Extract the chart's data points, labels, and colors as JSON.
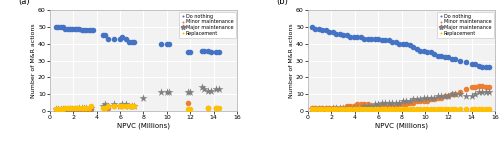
{
  "panel_a": {
    "do_nothing": {
      "x": [
        0.5,
        0.7,
        0.9,
        1.1,
        1.3,
        1.5,
        1.7,
        1.9,
        2.1,
        2.3,
        2.5,
        2.7,
        2.9,
        3.1,
        3.3,
        3.5,
        3.7,
        4.5,
        4.7,
        5.0,
        5.5,
        6.0,
        6.2,
        6.5,
        6.8,
        7.0,
        7.2,
        9.5,
        10.0,
        10.2,
        11.8,
        12.0,
        13.0,
        13.2,
        13.5,
        13.8,
        14.2,
        14.5
      ],
      "y": [
        50,
        50,
        50,
        50,
        49,
        49,
        49,
        49,
        49,
        49,
        49,
        48,
        48,
        48,
        48,
        48,
        48,
        45,
        45,
        43,
        43,
        43,
        44,
        43,
        41,
        41,
        41,
        40,
        40,
        40,
        35,
        35,
        36,
        36,
        36,
        35,
        35,
        35
      ]
    },
    "minor_maintenance": {
      "x": [
        0.5,
        0.7,
        0.9,
        1.1,
        1.3,
        1.5,
        1.7,
        1.9,
        2.1,
        2.3,
        2.5,
        2.7,
        2.9,
        3.1,
        3.3,
        3.5,
        5.0,
        5.5,
        6.0,
        6.5,
        7.0,
        11.8,
        13.5,
        14.2
      ],
      "y": [
        1,
        1,
        1,
        1,
        1,
        1,
        1,
        1,
        1,
        1,
        1,
        1,
        1,
        1,
        1,
        1,
        2,
        3,
        3,
        3,
        3,
        5,
        2,
        2
      ]
    },
    "major_maintenance": {
      "x": [
        0.5,
        0.7,
        0.9,
        1.1,
        1.3,
        1.5,
        1.7,
        1.9,
        2.1,
        2.3,
        2.5,
        2.7,
        2.9,
        3.1,
        3.3,
        3.5,
        4.5,
        4.7,
        5.0,
        5.5,
        6.0,
        6.2,
        6.5,
        6.8,
        7.0,
        7.2,
        8.0,
        9.5,
        10.0,
        10.2,
        11.8,
        12.0,
        13.0,
        13.2,
        13.5,
        13.8,
        14.2,
        14.5
      ],
      "y": [
        1,
        1,
        1,
        1,
        1,
        1,
        1,
        1,
        1,
        1,
        2,
        2,
        2,
        2,
        2,
        2,
        3,
        4,
        3,
        4,
        3,
        4,
        4,
        3,
        3,
        3,
        8,
        11,
        11,
        11,
        11,
        11,
        14,
        13,
        12,
        12,
        13,
        13
      ]
    },
    "replacement": {
      "x": [
        0.5,
        0.7,
        0.9,
        1.1,
        1.3,
        1.5,
        1.7,
        1.9,
        2.1,
        2.3,
        2.5,
        2.7,
        2.9,
        3.1,
        3.3,
        3.5,
        4.5,
        4.7,
        5.0,
        5.5,
        6.0,
        6.2,
        6.5,
        6.8,
        7.0,
        7.2,
        11.8,
        12.0,
        13.5,
        14.2,
        14.5
      ],
      "y": [
        1,
        1,
        1,
        1,
        2,
        2,
        2,
        2,
        2,
        2,
        2,
        2,
        2,
        2,
        2,
        3,
        2,
        2,
        3,
        3,
        3,
        3,
        3,
        3,
        3,
        3,
        1,
        1,
        2,
        2,
        2
      ]
    }
  },
  "panel_b": {
    "do_nothing": {
      "x": [
        0.3,
        0.6,
        0.9,
        1.2,
        1.5,
        1.8,
        2.1,
        2.4,
        2.7,
        3.0,
        3.3,
        3.6,
        3.9,
        4.2,
        4.5,
        4.8,
        5.1,
        5.4,
        5.7,
        6.0,
        6.3,
        6.6,
        6.9,
        7.2,
        7.5,
        7.8,
        8.1,
        8.4,
        8.7,
        9.0,
        9.3,
        9.6,
        9.9,
        10.2,
        10.5,
        10.8,
        11.1,
        11.4,
        11.7,
        12.0,
        12.3,
        12.6,
        13.0,
        13.5,
        14.0,
        14.3,
        14.6,
        14.9,
        15.2,
        15.5
      ],
      "y": [
        50,
        49,
        49,
        48,
        48,
        47,
        47,
        46,
        46,
        45,
        45,
        44,
        44,
        44,
        44,
        43,
        43,
        43,
        43,
        43,
        42,
        42,
        42,
        41,
        41,
        40,
        40,
        40,
        39,
        38,
        37,
        36,
        36,
        35,
        35,
        34,
        33,
        33,
        32,
        32,
        31,
        31,
        30,
        29,
        28,
        28,
        27,
        26,
        26,
        26
      ]
    },
    "minor_maintenance": {
      "x": [
        0.3,
        0.6,
        0.9,
        1.2,
        1.5,
        1.8,
        2.1,
        2.4,
        2.7,
        3.0,
        3.3,
        3.6,
        3.9,
        4.2,
        4.5,
        4.8,
        5.1,
        5.4,
        5.7,
        6.0,
        6.3,
        6.6,
        6.9,
        7.2,
        7.5,
        7.8,
        8.1,
        8.4,
        8.7,
        9.0,
        9.3,
        9.6,
        9.9,
        10.2,
        10.5,
        10.8,
        11.1,
        11.4,
        11.7,
        12.0,
        12.3,
        12.6,
        13.0,
        13.5,
        14.0,
        14.3,
        14.6,
        14.9,
        15.2,
        15.5
      ],
      "y": [
        2,
        2,
        2,
        2,
        2,
        2,
        2,
        2,
        2,
        2,
        3,
        3,
        3,
        4,
        4,
        4,
        4,
        3,
        3,
        3,
        3,
        3,
        3,
        3,
        3,
        4,
        4,
        4,
        5,
        5,
        6,
        6,
        6,
        6,
        7,
        7,
        8,
        8,
        9,
        9,
        10,
        10,
        11,
        13,
        14,
        14,
        15,
        15,
        14,
        14
      ]
    },
    "major_maintenance": {
      "x": [
        0.3,
        0.6,
        0.9,
        1.2,
        1.5,
        1.8,
        2.1,
        2.4,
        2.7,
        3.0,
        3.3,
        3.6,
        3.9,
        4.2,
        4.5,
        4.8,
        5.1,
        5.4,
        5.7,
        6.0,
        6.3,
        6.6,
        6.9,
        7.2,
        7.5,
        7.8,
        8.1,
        8.4,
        8.7,
        9.0,
        9.3,
        9.6,
        9.9,
        10.2,
        10.5,
        10.8,
        11.1,
        11.4,
        11.7,
        12.0,
        12.3,
        12.6,
        13.0,
        13.5,
        14.0,
        14.3,
        14.6,
        14.9,
        15.2,
        15.5
      ],
      "y": [
        1,
        1,
        1,
        1,
        1,
        1,
        2,
        2,
        2,
        2,
        2,
        2,
        2,
        2,
        2,
        3,
        3,
        3,
        4,
        4,
        5,
        5,
        5,
        5,
        5,
        5,
        6,
        6,
        6,
        7,
        7,
        7,
        8,
        8,
        8,
        8,
        9,
        9,
        9,
        9,
        10,
        10,
        10,
        9,
        9,
        10,
        11,
        11,
        11,
        11
      ]
    },
    "replacement": {
      "x": [
        0.3,
        0.6,
        0.9,
        1.2,
        1.5,
        1.8,
        2.1,
        2.4,
        2.7,
        3.0,
        3.3,
        3.6,
        3.9,
        4.2,
        4.5,
        4.8,
        5.1,
        5.4,
        5.7,
        6.0,
        6.3,
        6.6,
        6.9,
        7.2,
        7.5,
        7.8,
        8.1,
        8.4,
        8.7,
        9.0,
        9.3,
        9.6,
        9.9,
        10.2,
        10.5,
        10.8,
        11.1,
        11.4,
        11.7,
        12.0,
        12.3,
        12.6,
        13.0,
        13.5,
        14.0,
        14.3,
        14.6,
        14.9,
        15.2,
        15.5
      ],
      "y": [
        1,
        1,
        1,
        1,
        1,
        1,
        1,
        1,
        1,
        1,
        1,
        1,
        1,
        1,
        1,
        1,
        1,
        1,
        1,
        1,
        1,
        1,
        1,
        1,
        1,
        1,
        1,
        1,
        1,
        1,
        1,
        1,
        1,
        1,
        1,
        1,
        1,
        1,
        1,
        1,
        1,
        1,
        1,
        1,
        1,
        1,
        1,
        1,
        1,
        1
      ]
    }
  },
  "colors": {
    "do_nothing": "#4472C4",
    "minor_maintenance": "#ED7D31",
    "major_maintenance": "#808080",
    "replacement": "#FFC000"
  },
  "ylabel": "Number of M&R actions",
  "xlabel": "NPVC (Millions)",
  "ylim": [
    0,
    60
  ],
  "xlim": [
    0,
    16
  ],
  "yticks": [
    0,
    10,
    20,
    30,
    40,
    50,
    60
  ],
  "xticks": [
    0,
    2,
    4,
    6,
    8,
    10,
    12,
    14,
    16
  ],
  "legend_labels": [
    "Do nothing",
    "Minor maintenance",
    "Major maintenance",
    "Replacement"
  ],
  "dot_size": 4,
  "star_size": 6,
  "label_a": "(a)",
  "label_b": "(b)",
  "bg_color": "#f2f2f2",
  "grid_color": "#ffffff",
  "fig_bg": "#ffffff"
}
